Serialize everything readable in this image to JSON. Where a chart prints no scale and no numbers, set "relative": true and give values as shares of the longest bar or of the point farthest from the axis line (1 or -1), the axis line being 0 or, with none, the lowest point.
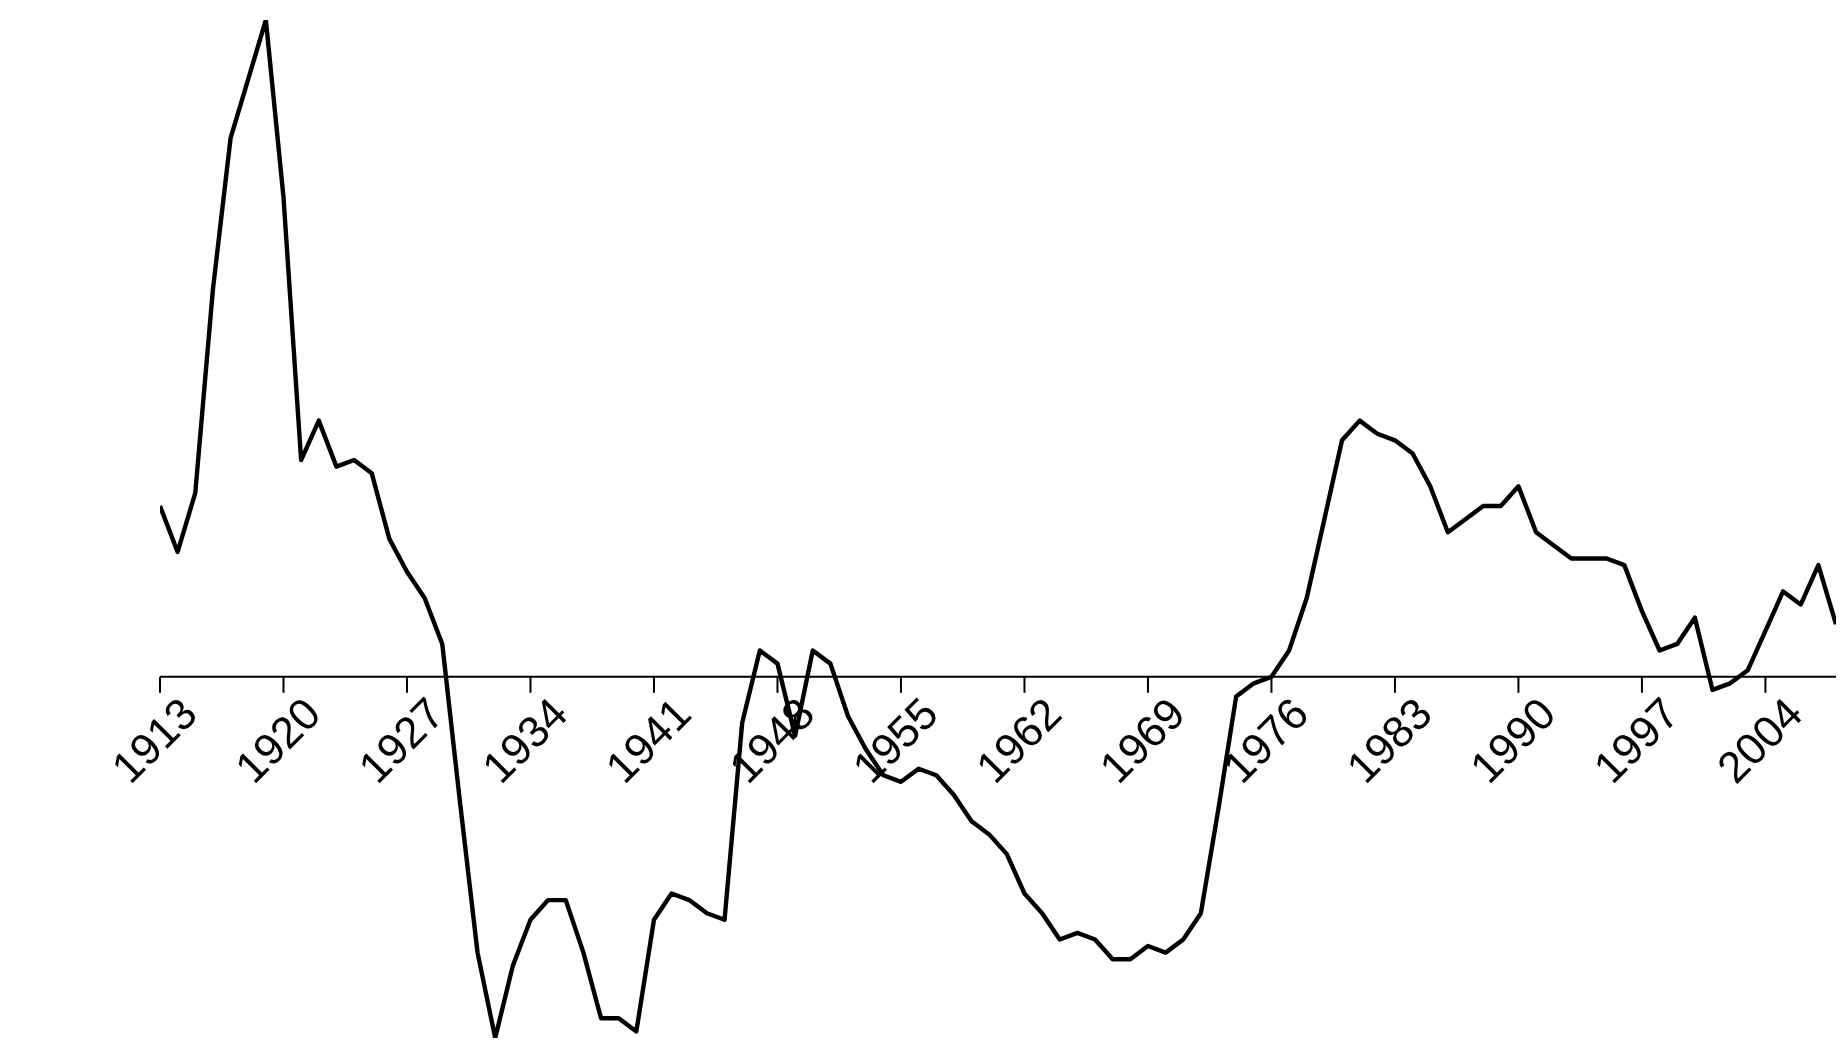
{
  "chart_data": {
    "type": "line",
    "relative": true,
    "x": [
      1913,
      1914,
      1915,
      1916,
      1917,
      1918,
      1919,
      1920,
      1921,
      1922,
      1923,
      1924,
      1925,
      1926,
      1927,
      1928,
      1929,
      1930,
      1931,
      1932,
      1933,
      1934,
      1935,
      1936,
      1937,
      1938,
      1939,
      1940,
      1941,
      1942,
      1943,
      1944,
      1945,
      1946,
      1947,
      1948,
      1949,
      1950,
      1951,
      1952,
      1953,
      1954,
      1955,
      1956,
      1957,
      1958,
      1959,
      1960,
      1961,
      1962,
      1963,
      1964,
      1965,
      1966,
      1967,
      1968,
      1969,
      1970,
      1971,
      1972,
      1973,
      1974,
      1975,
      1976,
      1977,
      1978,
      1979,
      1980,
      1981,
      1982,
      1983,
      1984,
      1985,
      1986,
      1987,
      1988,
      1989,
      1990,
      1991,
      1992,
      1993,
      1994,
      1995,
      1996,
      1997,
      1998,
      1999,
      2000,
      2001,
      2002,
      2003,
      2004,
      2005,
      2006,
      2007,
      2008
    ],
    "xlim": [
      1913,
      2008
    ],
    "xticks": [
      1913,
      1920,
      1927,
      1934,
      1941,
      1948,
      1955,
      1962,
      1969,
      1976,
      1983,
      1990,
      1997,
      2004
    ],
    "series": [
      {
        "color": "#000000",
        "values": [
          0.26,
          0.19,
          0.28,
          0.59,
          0.82,
          0.91,
          1,
          0.73,
          0.33,
          0.39,
          0.32,
          0.33,
          0.31,
          0.21,
          0.16,
          0.12,
          0.05,
          -0.19,
          -0.42,
          -0.55,
          -0.44,
          -0.37,
          -0.34,
          -0.34,
          -0.42,
          -0.52,
          -0.52,
          -0.54,
          -0.37,
          -0.33,
          -0.34,
          -0.36,
          -0.37,
          -0.07,
          0.04,
          0.02,
          -0.09,
          0.04,
          0.02,
          -0.06,
          -0.11,
          -0.15,
          -0.16,
          -0.14,
          -0.15,
          -0.18,
          -0.22,
          -0.24,
          -0.27,
          -0.33,
          -0.36,
          -0.4,
          -0.39,
          -0.4,
          -0.43,
          -0.43,
          -0.41,
          -0.42,
          -0.4,
          -0.36,
          -0.2,
          -0.03,
          -0.01,
          0,
          0.04,
          0.12,
          0.24,
          0.36,
          0.39,
          0.37,
          0.36,
          0.34,
          0.29,
          0.22,
          0.24,
          0.26,
          0.26,
          0.29,
          0.22,
          0.2,
          0.18,
          0.18,
          0.18,
          0.17,
          0.1,
          0.04,
          0.05,
          0.09,
          -0.02,
          -0.01,
          0.01,
          0.07,
          0.13,
          0.11,
          0.17,
          0.08
        ]
      }
    ],
    "marker": "none",
    "line_style": "solid"
  }
}
